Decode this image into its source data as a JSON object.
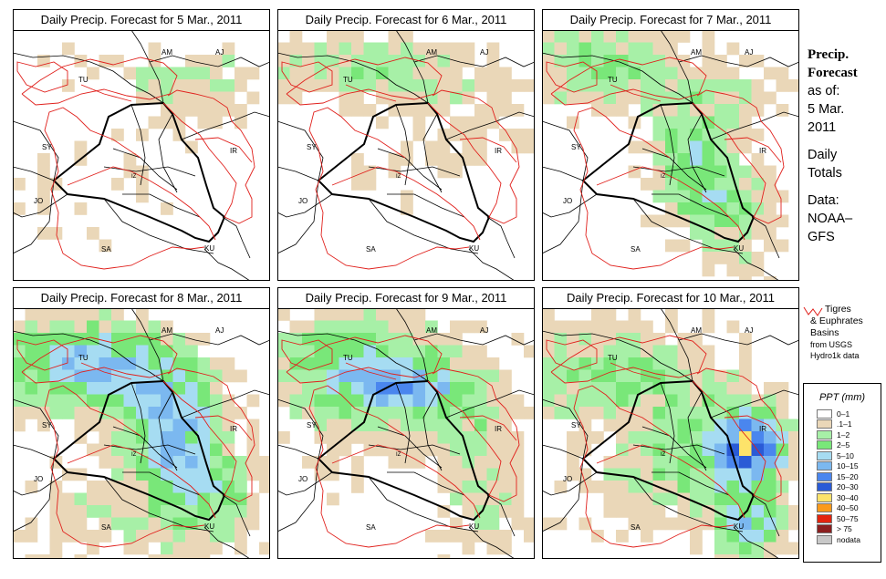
{
  "panels": [
    {
      "title": "Daily Precip. Forecast for  5 Mar., 2011"
    },
    {
      "title": "Daily Precip. Forecast for  6 Mar., 2011"
    },
    {
      "title": "Daily Precip. Forecast for  7 Mar., 2011"
    },
    {
      "title": "Daily Precip. Forecast for  8 Mar., 2011"
    },
    {
      "title": "Daily Precip. Forecast for  9 Mar., 2011"
    },
    {
      "title": "Daily Precip. Forecast for  10 Mar., 2011"
    }
  ],
  "country_labels": [
    "AM",
    "AJ",
    "TU",
    "SY",
    "IR",
    "JO",
    "SA",
    "KU",
    "IZ"
  ],
  "side_info": {
    "heading_1": "Precip.",
    "heading_2": "Forecast",
    "as_of": "as of:",
    "date_1": "5 Mar.",
    "date_2": "2011",
    "totals_1": "Daily",
    "totals_2": "Totals",
    "source_1": "Data:",
    "source_2": "NOAA–",
    "source_3": "GFS"
  },
  "basin_note": {
    "line_1": "Tigres",
    "line_2": "& Euphrates",
    "line_3": "Basins",
    "line_4": "from USGS",
    "line_5": "Hydro1k data",
    "color": "#e0201c"
  },
  "legend": {
    "title": "PPT (mm)",
    "items": [
      {
        "label": "0–1",
        "color": "#ffffff"
      },
      {
        "label": ".1–1",
        "color": "#ead7b8"
      },
      {
        "label": "1–2",
        "color": "#a7f0a7"
      },
      {
        "label": "2–5",
        "color": "#79e779"
      },
      {
        "label": "5–10",
        "color": "#a6dcf2"
      },
      {
        "label": "10–15",
        "color": "#7bb8f0"
      },
      {
        "label": "15–20",
        "color": "#4a86ee"
      },
      {
        "label": "20–30",
        "color": "#2a5bd6"
      },
      {
        "label": "30–40",
        "color": "#fde36a"
      },
      {
        "label": "40–50",
        "color": "#fb9a1a"
      },
      {
        "label": "50–75",
        "color": "#e3240e"
      },
      {
        "label": "> 75",
        "color": "#8b1f1f"
      },
      {
        "label": "nodata",
        "color": "#c8c8c8"
      }
    ]
  }
}
